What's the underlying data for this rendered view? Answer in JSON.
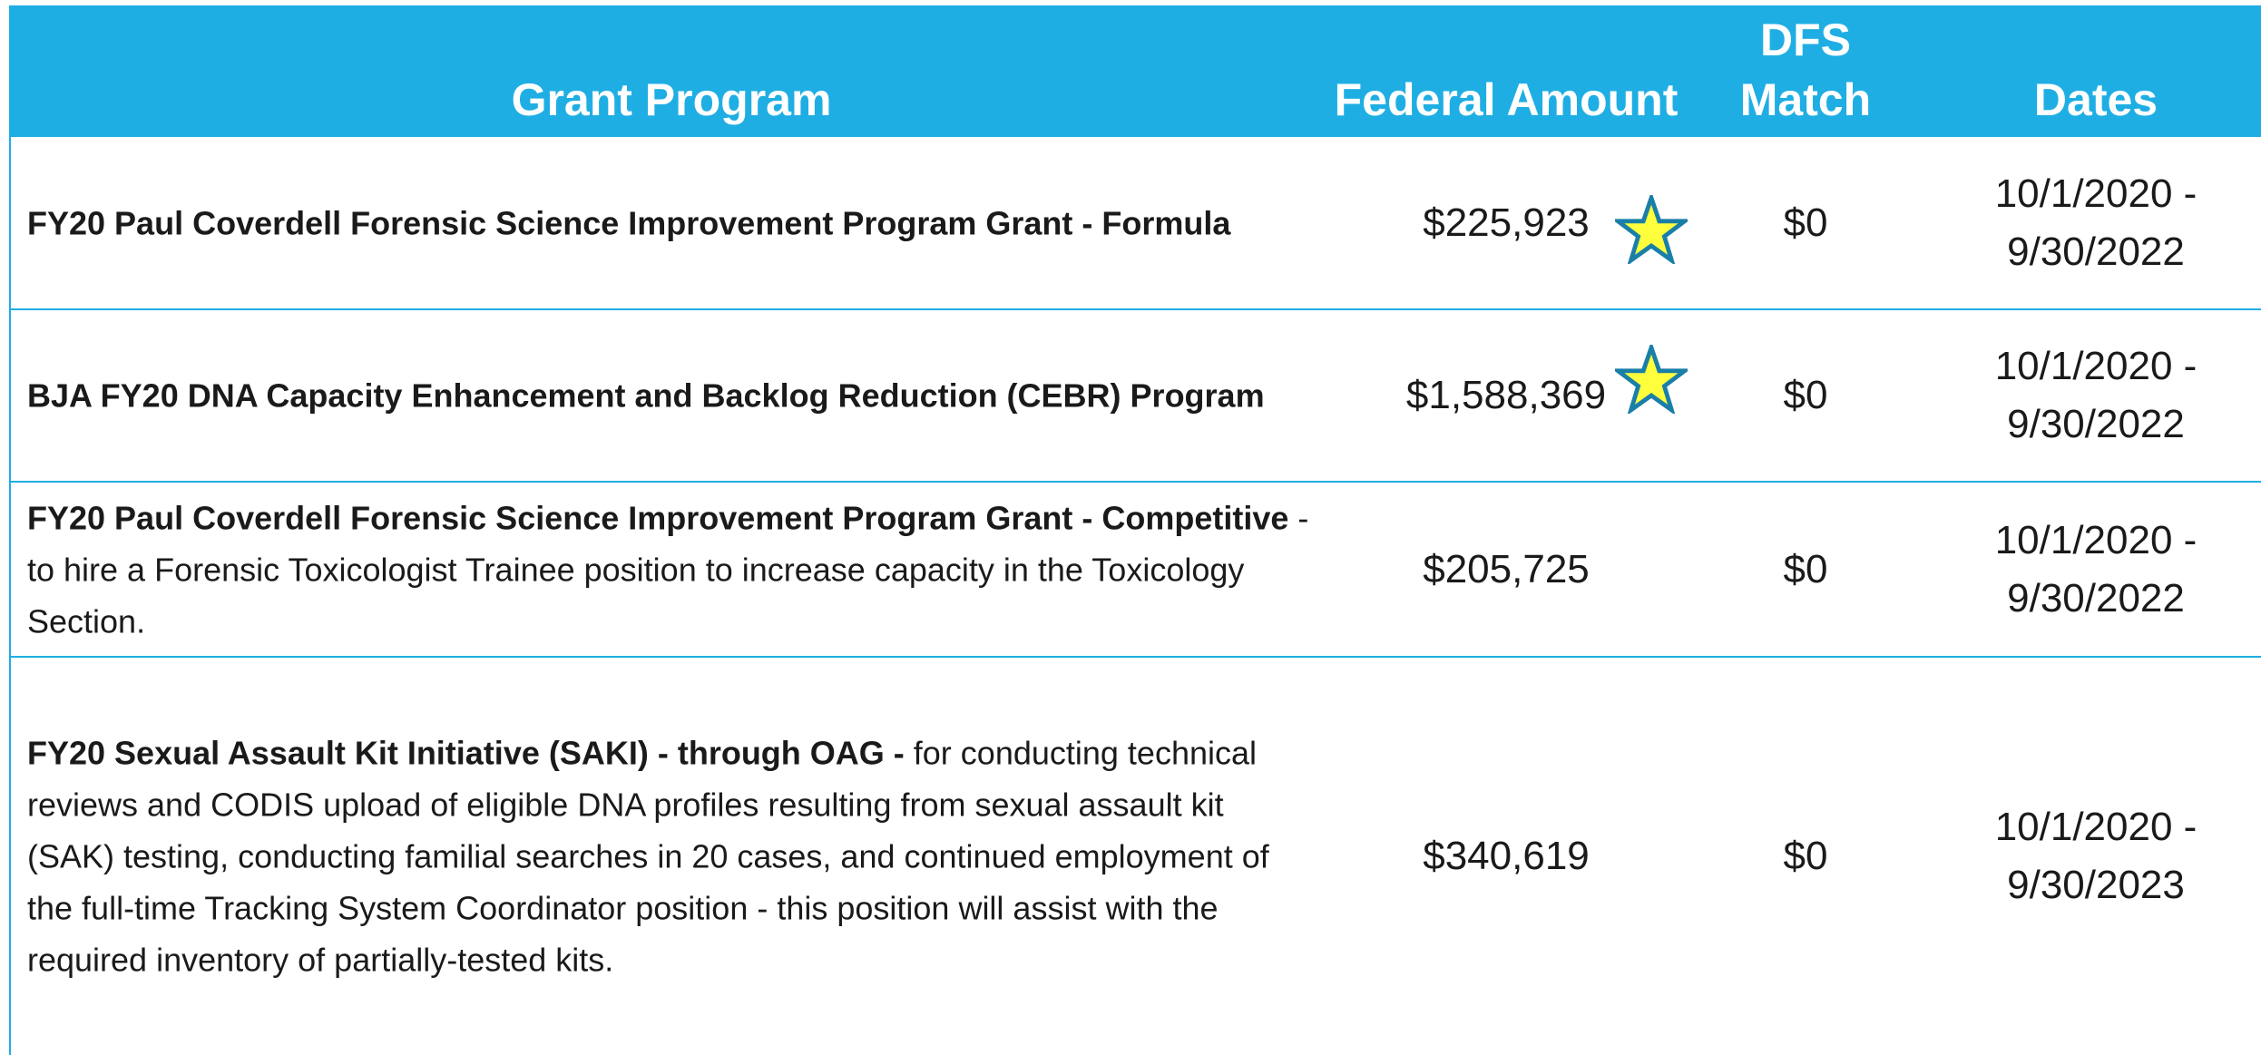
{
  "table": {
    "headers": [
      "Grant Program",
      "Federal Amount",
      "DFS Match",
      "Dates"
    ],
    "rows": [
      {
        "program_bold": "FY20 Paul Coverdell Forensic Science Improvement Program Grant - Formula",
        "program_text": "",
        "amount": "$225,923",
        "match": "$0",
        "dates": "10/1/2020 - 9/30/2022"
      },
      {
        "program_bold": "BJA FY20 DNA Capacity Enhancement and Backlog Reduction (CEBR) Program",
        "program_text": "",
        "amount": "$1,588,369",
        "match": "$0",
        "dates": "10/1/2020 - 9/30/2022"
      },
      {
        "program_bold": "FY20 Paul Coverdell  Forensic Science Improvement Program Grant - Competitive",
        "program_text": "- to hire a Forensic Toxicologist Trainee position to increase capacity in the Toxicology Section.",
        "amount": "$205,725",
        "match": "$0",
        "dates": "10/1/2020 - 9/30/2022"
      },
      {
        "program_bold": "FY20 Sexual Assault Kit Initiative (SAKI) - through OAG -",
        "program_text": "for conducting technical reviews and CODIS upload of eligible DNA profiles resulting from sexual assault kit (SAK) testing, conducting familial searches in 20 cases, and continued employment of the full-time Tracking System Coordinator position - this position will assist with the required inventory of partially-tested kits.",
        "amount": "$340,619",
        "match": "$0",
        "dates": "10/1/2020 - 9/30/2023"
      }
    ]
  }
}
